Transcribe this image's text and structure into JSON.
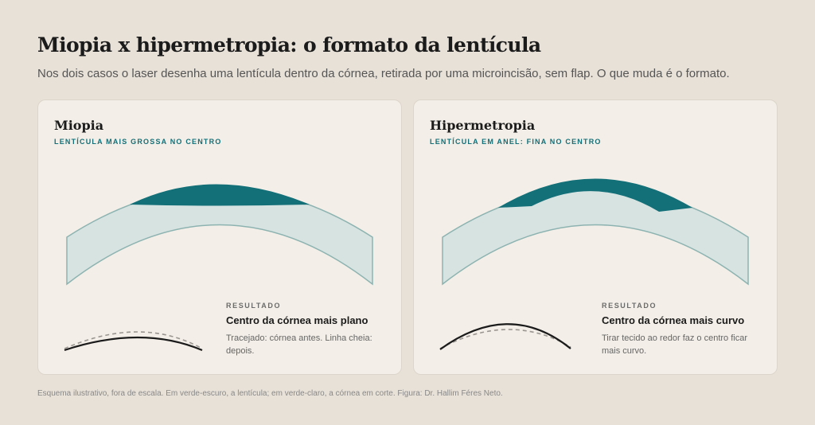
{
  "title": "Miopia x hipermetropia: o formato da lentícula",
  "subtitle": "Nos dois casos o laser desenha uma lentícula dentro da córnea, retirada por uma microincisão, sem flap. O que muda é o formato.",
  "panels": [
    {
      "title": "Miopia",
      "tag": "LENTÍCULA MAIS GROSSA NO CENTRO",
      "result_label": "RESULTADO",
      "result_title": "Centro da córnea mais plano",
      "result_desc": "Tracejado: córnea antes. Linha cheia: depois."
    },
    {
      "title": "Hipermetropia",
      "tag": "LENTÍCULA EM ANEL: FINA NO CENTRO",
      "result_label": "RESULTADO",
      "result_title": "Centro da córnea mais curvo",
      "result_desc": "Tirar tecido ao redor faz o centro ficar mais curvo."
    }
  ],
  "footnote": "Esquema ilustrativo, fora de escala. Em verde-escuro, a lentícula; em verde-claro, a córnea em corte. Figura: Dr. Hallim Féres Neto.",
  "colors": {
    "background": "#e8e1d8",
    "card": "#f3efe8",
    "cornea_fill": "#d7e3e1",
    "cornea_stroke": "#8db3b1",
    "lenticule": "#136f78",
    "accent_text": "#136f78"
  }
}
